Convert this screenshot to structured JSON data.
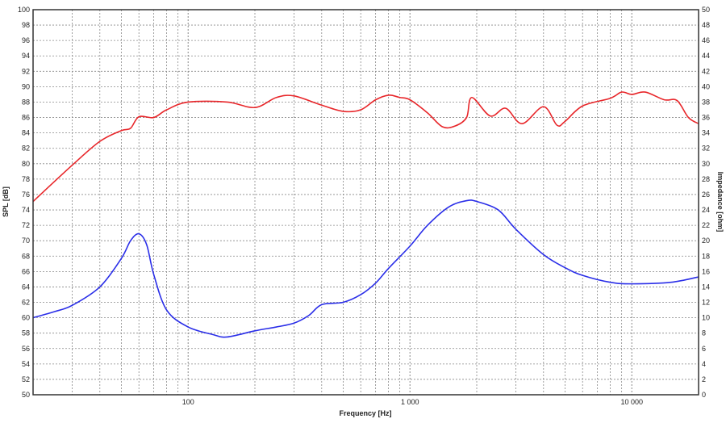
{
  "chart_data": {
    "type": "line",
    "xlabel": "Frequency [Hz]",
    "ylabel": "SPL [dB]",
    "y2label": "Impedance [ohm]",
    "xscale": "log",
    "xlim": [
      20,
      20000
    ],
    "ylim": [
      50,
      100
    ],
    "y2lim": [
      0,
      50
    ],
    "grid": true,
    "x_tick_labels": [
      {
        "value": 100,
        "label": "100"
      },
      {
        "value": 1000,
        "label": "1 000"
      },
      {
        "value": 10000,
        "label": "10 000"
      }
    ],
    "y_ticks": [
      50,
      52,
      54,
      56,
      58,
      60,
      62,
      64,
      66,
      68,
      70,
      72,
      74,
      76,
      78,
      80,
      82,
      84,
      86,
      88,
      90,
      92,
      94,
      96,
      98,
      100
    ],
    "y2_ticks": [
      0,
      2,
      4,
      6,
      8,
      10,
      12,
      14,
      16,
      18,
      20,
      22,
      24,
      26,
      28,
      30,
      32,
      34,
      36,
      38,
      40,
      42,
      44,
      46,
      48,
      50
    ],
    "series": [
      {
        "axis": "left",
        "color": "#e8262a",
        "x": [
          20,
          30,
          40,
          50,
          55,
          60,
          70,
          80,
          100,
          150,
          200,
          250,
          300,
          400,
          500,
          600,
          700,
          800,
          900,
          1000,
          1200,
          1400,
          1600,
          1800,
          1900,
          2300,
          2700,
          3200,
          4000,
          4600,
          5000,
          6000,
          8000,
          9000,
          10000,
          11500,
          14000,
          16000,
          18000,
          20000
        ],
        "y": [
          75.1,
          79.8,
          82.9,
          84.3,
          84.6,
          86.1,
          86.0,
          87.0,
          88.0,
          88.0,
          87.3,
          88.6,
          88.8,
          87.6,
          86.8,
          87.0,
          88.3,
          88.9,
          88.6,
          88.3,
          86.6,
          84.8,
          84.9,
          86.0,
          88.6,
          86.2,
          87.2,
          85.2,
          87.4,
          85.0,
          85.5,
          87.5,
          88.5,
          89.3,
          89.0,
          89.3,
          88.3,
          88.2,
          86.0,
          85.2
        ]
      },
      {
        "axis": "right",
        "color": "#2a2ee8",
        "x": [
          20,
          25,
          30,
          40,
          50,
          55,
          60,
          65,
          70,
          80,
          100,
          130,
          150,
          200,
          250,
          300,
          350,
          400,
          500,
          600,
          700,
          800,
          1000,
          1200,
          1500,
          1800,
          2000,
          2500,
          3000,
          4000,
          5000,
          6000,
          8000,
          10000,
          15000,
          20000
        ],
        "y": [
          10.0,
          10.8,
          11.6,
          14.0,
          17.7,
          20.0,
          20.9,
          19.5,
          15.6,
          11.0,
          8.8,
          7.8,
          7.5,
          8.3,
          8.8,
          9.3,
          10.3,
          11.7,
          12.0,
          13.0,
          14.5,
          16.4,
          19.3,
          22.0,
          24.4,
          25.2,
          25.1,
          24.0,
          21.5,
          18.2,
          16.5,
          15.5,
          14.6,
          14.4,
          14.6,
          15.3
        ]
      }
    ]
  }
}
